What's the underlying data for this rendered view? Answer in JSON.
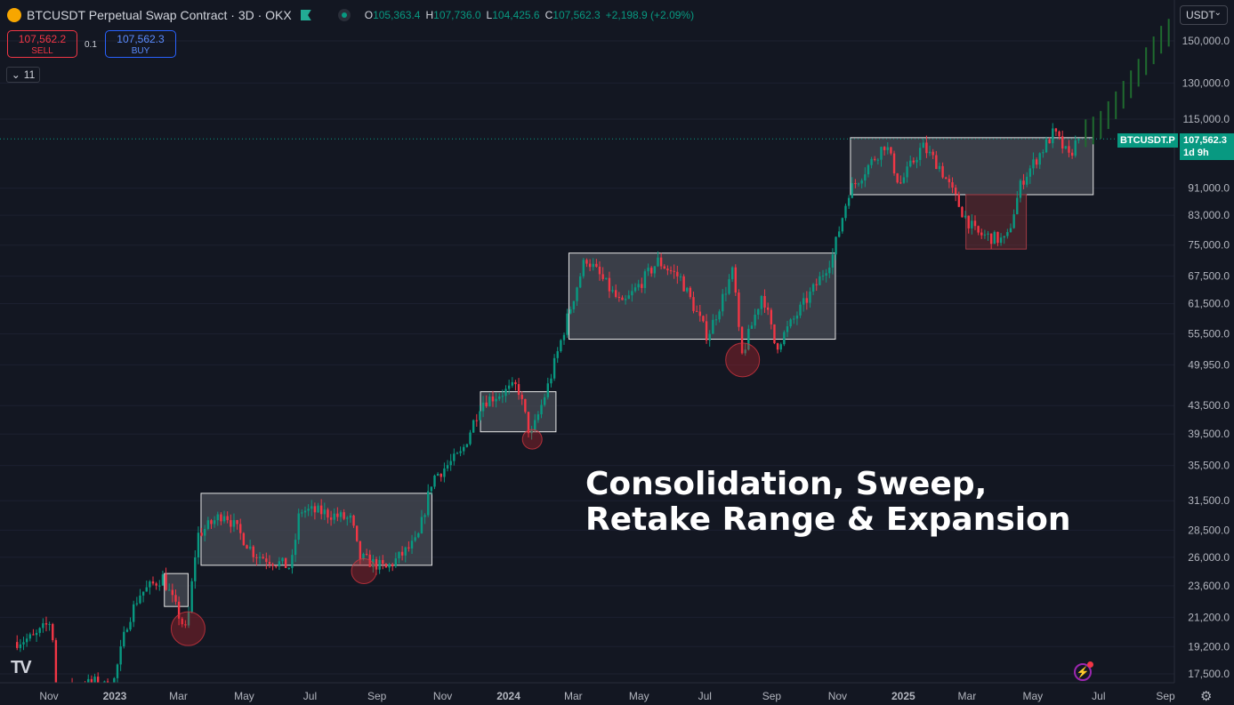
{
  "header": {
    "title": "BTCUSDT Perpetual Swap Contract · 3D · OKX",
    "ohlc": [
      {
        "k": "O",
        "v": "105,363.4"
      },
      {
        "k": "H",
        "v": "107,736.0"
      },
      {
        "k": "L",
        "v": "104,425.6"
      },
      {
        "k": "C",
        "v": "107,562.3"
      }
    ],
    "change": "+2,198.9 (+2.09%)"
  },
  "trade": {
    "sell_price": "107,562.2",
    "sell_label": "SELL",
    "buy_price": "107,562.3",
    "buy_label": "BUY",
    "spread": "0.1"
  },
  "indicators_count": "11",
  "currency": "USDT",
  "overlay_text": [
    "Consolidation, Sweep,",
    "Retake Range & Expansion"
  ],
  "price_tag": {
    "symbol": "BTCUSDT.P",
    "price": "107,562.3",
    "countdown": "1d 9h"
  },
  "colors": {
    "up": "#089981",
    "down": "#f23645",
    "background": "#131722",
    "box_fill": "#4a4e58",
    "bearish_box": "#6b2e33"
  },
  "chart_data": {
    "type": "candlestick",
    "title": "BTCUSDT Perpetual Swap Contract · 3D · OKX",
    "y_scale": "log",
    "ylim": [
      16500,
      162000
    ],
    "x_range": [
      "2022-10-01",
      "2025-09-28"
    ],
    "y_ticks": [
      "150,000.0",
      "130,000.0",
      "115,000.0",
      "91,000.0",
      "83,000.0",
      "75,000.0",
      "67,500.0",
      "61,500.0",
      "55,500.0",
      "49,950.0",
      "43,500.0",
      "39,500.0",
      "35,500.0",
      "31,500.0",
      "28,500.0",
      "26,000.0",
      "23,600.0",
      "21,200.0",
      "19,200.0",
      "17,500.0"
    ],
    "x_ticks": [
      {
        "label": "Nov",
        "date": "2022-11-01",
        "bold": false
      },
      {
        "label": "2023",
        "date": "2023-01-01",
        "bold": true
      },
      {
        "label": "Mar",
        "date": "2023-03-01",
        "bold": false
      },
      {
        "label": "May",
        "date": "2023-05-01",
        "bold": false
      },
      {
        "label": "Jul",
        "date": "2023-07-01",
        "bold": false
      },
      {
        "label": "Sep",
        "date": "2023-09-01",
        "bold": false
      },
      {
        "label": "Nov",
        "date": "2023-11-01",
        "bold": false
      },
      {
        "label": "2024",
        "date": "2024-01-01",
        "bold": true
      },
      {
        "label": "Mar",
        "date": "2024-03-01",
        "bold": false
      },
      {
        "label": "May",
        "date": "2024-05-01",
        "bold": false
      },
      {
        "label": "Jul",
        "date": "2024-07-01",
        "bold": false
      },
      {
        "label": "Sep",
        "date": "2024-09-01",
        "bold": false
      },
      {
        "label": "Nov",
        "date": "2024-11-01",
        "bold": false
      },
      {
        "label": "2025",
        "date": "2025-01-01",
        "bold": true
      },
      {
        "label": "Mar",
        "date": "2025-03-01",
        "bold": false
      },
      {
        "label": "May",
        "date": "2025-05-01",
        "bold": false
      },
      {
        "label": "Jul",
        "date": "2025-07-01",
        "bold": false
      },
      {
        "label": "Sep",
        "date": "2025-09-01",
        "bold": false
      }
    ],
    "last_price": 107562.3,
    "price_path": [
      [
        "2022-10-01",
        19500
      ],
      [
        "2022-10-20",
        19800
      ],
      [
        "2022-11-05",
        21000
      ],
      [
        "2022-11-09",
        16500
      ],
      [
        "2022-12-15",
        17000
      ],
      [
        "2022-12-31",
        16600
      ],
      [
        "2023-01-14",
        20800
      ],
      [
        "2023-01-25",
        22900
      ],
      [
        "2023-02-16",
        24300
      ],
      [
        "2023-03-10",
        20100
      ],
      [
        "2023-03-20",
        28000
      ],
      [
        "2023-04-14",
        30300
      ],
      [
        "2023-05-12",
        26300
      ],
      [
        "2023-06-15",
        25100
      ],
      [
        "2023-06-23",
        30500
      ],
      [
        "2023-07-14",
        30300
      ],
      [
        "2023-08-10",
        29500
      ],
      [
        "2023-08-17",
        26000
      ],
      [
        "2023-09-11",
        25000
      ],
      [
        "2023-10-10",
        27500
      ],
      [
        "2023-10-24",
        34000
      ],
      [
        "2023-11-20",
        37000
      ],
      [
        "2023-12-08",
        44000
      ],
      [
        "2024-01-11",
        46500
      ],
      [
        "2024-01-23",
        39000
      ],
      [
        "2024-02-09",
        47000
      ],
      [
        "2024-02-28",
        60000
      ],
      [
        "2024-03-14",
        72000
      ],
      [
        "2024-04-17",
        61000
      ],
      [
        "2024-05-20",
        71000
      ],
      [
        "2024-06-10",
        67000
      ],
      [
        "2024-07-05",
        55000
      ],
      [
        "2024-07-29",
        69000
      ],
      [
        "2024-08-05",
        51000
      ],
      [
        "2024-08-25",
        64000
      ],
      [
        "2024-09-06",
        53000
      ],
      [
        "2024-10-15",
        66000
      ],
      [
        "2024-10-29",
        72500
      ],
      [
        "2024-11-13",
        90000
      ],
      [
        "2024-12-17",
        106000
      ],
      [
        "2024-12-30",
        92000
      ],
      [
        "2025-01-20",
        105000
      ],
      [
        "2025-02-05",
        98000
      ],
      [
        "2025-02-26",
        84000
      ],
      [
        "2025-03-11",
        78000
      ],
      [
        "2025-04-08",
        76000
      ],
      [
        "2025-04-22",
        93000
      ],
      [
        "2025-05-22",
        110000
      ],
      [
        "2025-06-05",
        101000
      ],
      [
        "2025-06-13",
        107562.3
      ]
    ],
    "projected_path": [
      [
        "2025-06-13",
        107562.3
      ],
      [
        "2025-06-30",
        110000
      ],
      [
        "2025-07-15",
        118000
      ],
      [
        "2025-07-31",
        128000
      ],
      [
        "2025-08-16",
        140000
      ],
      [
        "2025-09-01",
        152000
      ],
      [
        "2025-09-25",
        156000
      ]
    ],
    "range_boxes": [
      {
        "start": "2023-02-16",
        "end": "2023-03-10",
        "low": 22000,
        "high": 24600
      },
      {
        "start": "2023-03-22",
        "end": "2023-10-22",
        "low": 25300,
        "high": 32300
      },
      {
        "start": "2023-12-06",
        "end": "2024-02-14",
        "low": 39800,
        "high": 45600
      },
      {
        "start": "2024-02-26",
        "end": "2024-10-30",
        "low": 54500,
        "high": 73000
      },
      {
        "start": "2024-11-13",
        "end": "2025-06-26",
        "low": 89000,
        "high": 108000
      },
      {
        "start": "2025-02-28",
        "end": "2025-04-25",
        "low": 74000,
        "high": 89000,
        "bearish": true
      }
    ],
    "sweeps": [
      {
        "date": "2023-03-10",
        "price": 20400,
        "size": "large"
      },
      {
        "date": "2023-08-20",
        "price": 24800,
        "size": "medium"
      },
      {
        "date": "2024-01-23",
        "price": 38800,
        "size": "small"
      },
      {
        "date": "2024-08-05",
        "price": 50800,
        "size": "large"
      }
    ]
  }
}
